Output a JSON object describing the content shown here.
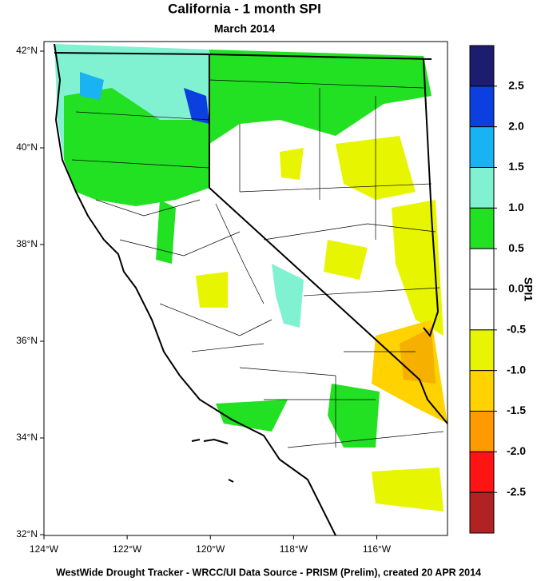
{
  "title": "California - 1 month SPI",
  "subtitle": "March 2014",
  "map": {
    "lat_ticks": [
      {
        "value": 42,
        "label": "42°N"
      },
      {
        "value": 40,
        "label": "40°N"
      },
      {
        "value": 38,
        "label": "38°N"
      },
      {
        "value": 36,
        "label": "36°N"
      },
      {
        "value": 34,
        "label": "34°N"
      },
      {
        "value": 32,
        "label": "32°N"
      }
    ],
    "lat_lim": [
      32,
      42
    ],
    "lon_ticks": [
      {
        "value": -124,
        "label": "124°W"
      },
      {
        "value": -122,
        "label": "122°W"
      },
      {
        "value": -120,
        "label": "120°W"
      },
      {
        "value": -118,
        "label": "118°W"
      },
      {
        "value": -116,
        "label": "116°W"
      }
    ],
    "lon_lim": [
      -124,
      -114.3
    ]
  },
  "colorbar": {
    "title": "SPI1",
    "lim": [
      -3,
      3
    ],
    "colors": [
      "#1c1c70",
      "#0c3fe0",
      "#19b2f2",
      "#80f2d2",
      "#22e022",
      "#ffffff",
      "#ffffff",
      "#e8f500",
      "#ffd200",
      "#ff9a00",
      "#ff1414",
      "#b22222"
    ],
    "levels": [
      2.5,
      {
        "value": 2,
        "label": "2.0"
      },
      1.5,
      {
        "value": 1,
        "label": "1.0"
      },
      0.5,
      {
        "value": 0,
        "label": "0.0"
      },
      -0.5,
      {
        "value": -1,
        "label": "-1.0"
      },
      -1.5,
      {
        "value": -2,
        "label": "-2.0"
      },
      -2.5
    ]
  },
  "footer": "WestWide Drought Tracker - WRCC/UI  Data Source - PRISM (Prelim), created 20 APR 2014"
}
